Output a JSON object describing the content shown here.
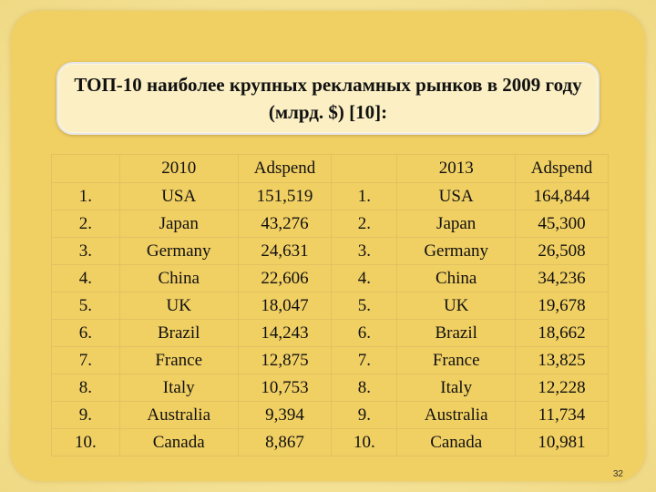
{
  "title": "ТОП-10 наиболее крупных рекламных рынков в 2009 году (млрд. $) [10]:",
  "table": {
    "header": [
      "",
      "2010",
      "Adspend",
      "",
      "2013",
      "Adspend"
    ],
    "rows": [
      [
        "1.",
        "USA",
        "151,519",
        "1.",
        "USA",
        "164,844"
      ],
      [
        "2.",
        "Japan",
        "43,276",
        "2.",
        "Japan",
        "45,300"
      ],
      [
        "3.",
        "Germany",
        "24,631",
        "3.",
        "Germany",
        "26,508"
      ],
      [
        "4.",
        "China",
        "22,606",
        "4.",
        "China",
        "34,236"
      ],
      [
        "5.",
        "UK",
        "18,047",
        "5.",
        "UK",
        "19,678"
      ],
      [
        "6.",
        "Brazil",
        "14,243",
        "6.",
        "Brazil",
        "18,662"
      ],
      [
        "7.",
        "France",
        "12,875",
        "7.",
        "France",
        "13,825"
      ],
      [
        "8.",
        "Italy",
        "10,753",
        "8.",
        "Italy",
        "12,228"
      ],
      [
        "9.",
        "Australia",
        "9,394",
        "9.",
        "Australia",
        "11,734"
      ],
      [
        "10.",
        "Canada",
        "8,867",
        "10.",
        "Canada",
        "10,981"
      ]
    ]
  },
  "page_number": "32"
}
